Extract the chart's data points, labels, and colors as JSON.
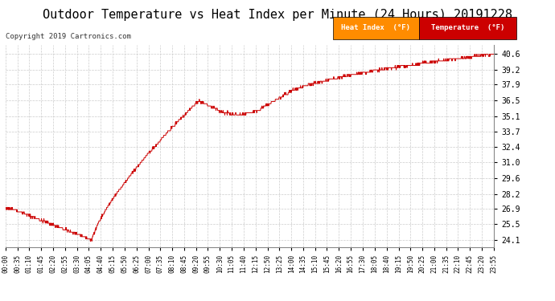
{
  "title": "Outdoor Temperature vs Heat Index per Minute (24 Hours) 20191228",
  "copyright": "Copyright 2019 Cartronics.com",
  "title_fontsize": 11,
  "bg_color": "#ffffff",
  "grid_color": "#cccccc",
  "line_color": "#cc0000",
  "yvalues": [
    40.6,
    39.2,
    37.9,
    36.5,
    35.1,
    33.7,
    32.4,
    31.0,
    29.6,
    28.2,
    26.9,
    25.5,
    24.1
  ],
  "ylim": [
    23.5,
    41.4
  ],
  "legend_heat_index_bg": "#ff8c00",
  "legend_temperature_bg": "#cc0000",
  "legend_text_color": "#ffffff",
  "xtick_labels": [
    "00:00",
    "00:35",
    "01:10",
    "01:45",
    "02:20",
    "02:55",
    "03:30",
    "04:05",
    "04:40",
    "05:15",
    "05:50",
    "06:25",
    "07:00",
    "07:35",
    "08:10",
    "08:45",
    "09:20",
    "09:55",
    "10:30",
    "11:05",
    "11:40",
    "12:15",
    "12:50",
    "13:25",
    "14:00",
    "14:35",
    "15:10",
    "15:45",
    "16:20",
    "16:55",
    "17:30",
    "18:05",
    "18:40",
    "19:15",
    "19:50",
    "20:25",
    "21:00",
    "21:35",
    "22:10",
    "22:45",
    "23:20",
    "23:55"
  ]
}
